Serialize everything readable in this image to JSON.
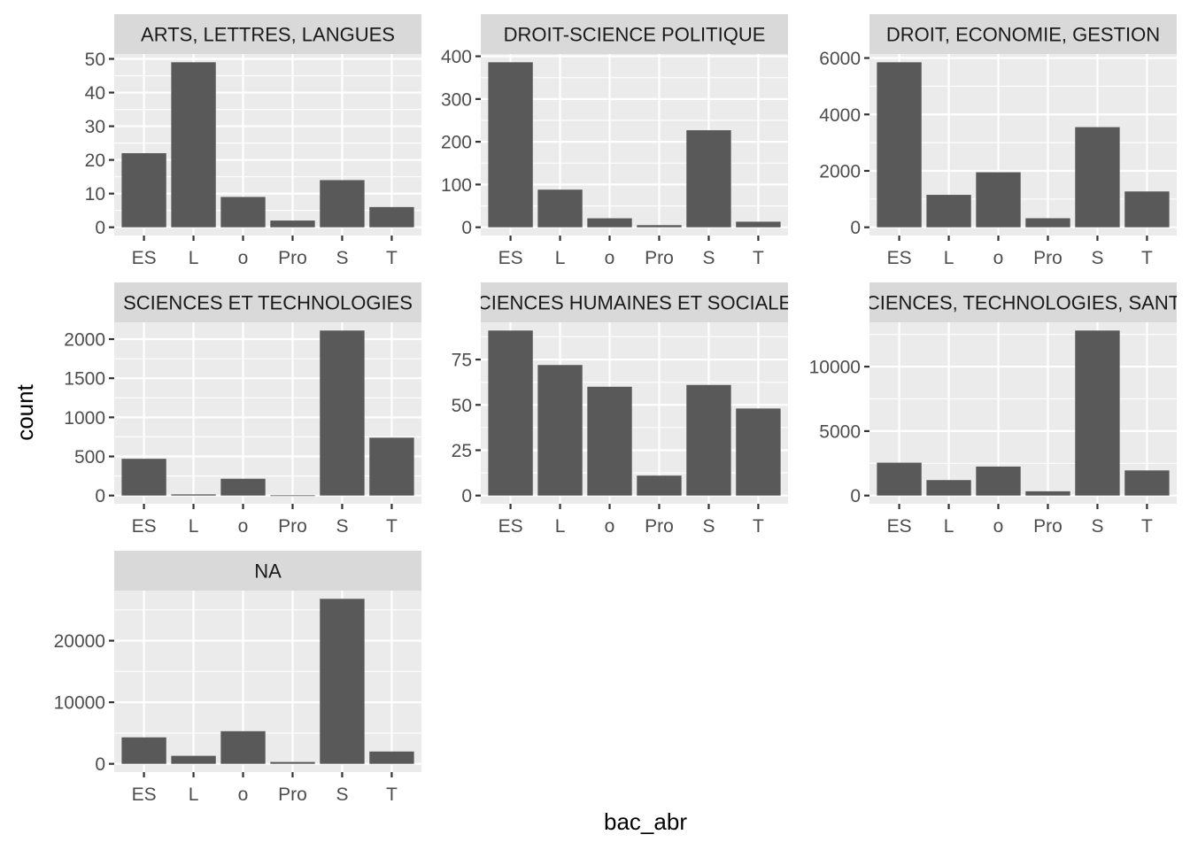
{
  "chart_data": {
    "type": "bar",
    "xlabel": "bac_abr",
    "ylabel": "count",
    "categories": [
      "ES",
      "L",
      "o",
      "Pro",
      "S",
      "T"
    ],
    "bar_color": "#595959",
    "panel_background": "#ebebeb",
    "strip_background": "#d9d9d9",
    "grid": true,
    "facets": [
      {
        "strip": "ARTS, LETTRES, LANGUES",
        "values": [
          22,
          49,
          9,
          2,
          14,
          6
        ],
        "ylim": [
          -2.45,
          51.45
        ],
        "yticks": [
          0,
          10,
          20,
          30,
          40,
          50
        ],
        "ytick_labels": [
          "0",
          "10",
          "20",
          "30",
          "40",
          "50"
        ]
      },
      {
        "strip": "DROIT-SCIENCE POLITIQUE",
        "values": [
          386,
          88,
          21,
          5,
          227,
          13
        ],
        "ylim": [
          -19.3,
          405.3
        ],
        "yticks": [
          0,
          100,
          200,
          300,
          400
        ],
        "ytick_labels": [
          "0",
          "100",
          "200",
          "300",
          "400"
        ]
      },
      {
        "strip": "DROIT, ECONOMIE, GESTION",
        "values": [
          5850,
          1150,
          1950,
          320,
          3550,
          1270
        ],
        "ylim": [
          -292.5,
          6142.5
        ],
        "yticks": [
          0,
          2000,
          4000,
          6000
        ],
        "ytick_labels": [
          "0",
          "2000",
          "4000",
          "6000"
        ]
      },
      {
        "strip": "SCIENCES ET TECHNOLOGIES",
        "values": [
          470,
          15,
          215,
          3,
          2110,
          740
        ],
        "ylim": [
          -105.5,
          2215.5
        ],
        "yticks": [
          0,
          500,
          1000,
          1500,
          2000
        ],
        "ytick_labels": [
          "0",
          "500",
          "1000",
          "1500",
          "2000"
        ]
      },
      {
        "strip": "SCIENCES HUMAINES ET SOCIALES",
        "values": [
          91,
          72,
          60,
          11,
          61,
          48
        ],
        "ylim": [
          -4.55,
          95.55
        ],
        "yticks": [
          0,
          25,
          50,
          75
        ],
        "ytick_labels": [
          "0",
          "25",
          "50",
          "75"
        ]
      },
      {
        "strip": "SCIENCES, TECHNOLOGIES, SANTE",
        "values": [
          2550,
          1200,
          2250,
          330,
          12800,
          1950
        ],
        "ylim": [
          -640,
          13440
        ],
        "yticks": [
          0,
          5000,
          10000
        ],
        "ytick_labels": [
          "0",
          "5000",
          "10000"
        ]
      },
      {
        "strip": "NA",
        "values": [
          4300,
          1300,
          5300,
          300,
          26800,
          2000
        ],
        "ylim": [
          -1340,
          28140
        ],
        "yticks": [
          0,
          10000,
          20000
        ],
        "ytick_labels": [
          "0",
          "10000",
          "20000"
        ]
      }
    ]
  }
}
